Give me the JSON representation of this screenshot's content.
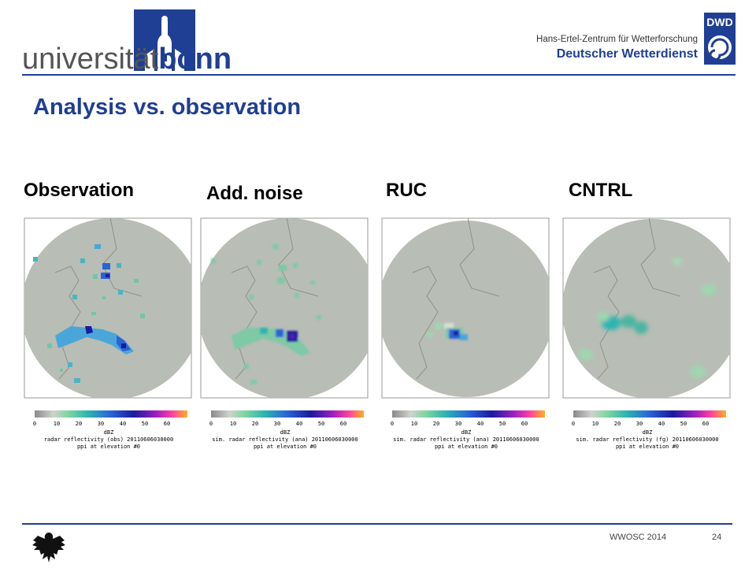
{
  "header": {
    "uni_prefix": "universität",
    "uni_suffix": "bonn",
    "dwd_badge": "DWD",
    "dwd_line1": "Hans-Ertel-Zentrum für Wetterforschung",
    "dwd_line2": "Deutscher Wetterdienst"
  },
  "title": "Analysis vs. observation",
  "panels": [
    {
      "label": "Observation",
      "caption1": "radar reflectivity (obs) 20110606030000",
      "caption2": "ppi at elevation #0"
    },
    {
      "label": "Add. noise",
      "caption1": "sim. radar reflectivity (ana) 20110606030000",
      "caption2": "ppi at elevation #0"
    },
    {
      "label": "RUC",
      "caption1": "sim. radar reflectivity (ana) 20110606030000",
      "caption2": "ppi at elevation #0"
    },
    {
      "label": "CNTRL",
      "caption1": "sim. radar reflectivity (fg) 20110606030000",
      "caption2": "ppi at elevation #0"
    }
  ],
  "colorbar": {
    "ticks": [
      "0",
      "10",
      "20",
      "30",
      "40",
      "50",
      "60"
    ],
    "unit": "dBZ"
  },
  "colors": {
    "accent": "#1f3f94",
    "plot_bg": "#b8bdb5"
  },
  "footer": {
    "conference": "WWOSC 2014",
    "page": "24"
  }
}
